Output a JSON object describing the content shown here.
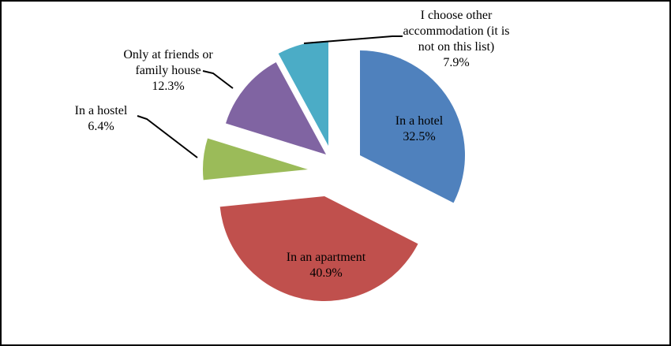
{
  "chart_data": {
    "type": "pie",
    "title": "",
    "slices": [
      {
        "label": "In a hotel",
        "value": 32.5,
        "percent_label": "32.5%",
        "color": "#4F81BD",
        "label_lines": [
          "In a hotel"
        ]
      },
      {
        "label": "In an apartment",
        "value": 40.9,
        "percent_label": "40.9%",
        "color": "#C0504D",
        "label_lines": [
          "In an apartment"
        ]
      },
      {
        "label": "In a hostel",
        "value": 6.4,
        "percent_label": "6.4%",
        "color": "#9BBB59",
        "label_lines": [
          "In a hostel"
        ]
      },
      {
        "label": "Only at friends or family house",
        "value": 12.3,
        "percent_label": "12.3%",
        "color": "#8064A2",
        "label_lines": [
          "Only at friends or",
          "family house"
        ]
      },
      {
        "label": "I choose other accommodation (it is not on this list)",
        "value": 7.9,
        "percent_label": "7.9%",
        "color": "#4BACC6",
        "label_lines": [
          "I choose other",
          "accommodation (it is",
          "not on this list)"
        ]
      }
    ],
    "exploded": true,
    "legend": "none",
    "data_labels": "category name and percentage"
  }
}
